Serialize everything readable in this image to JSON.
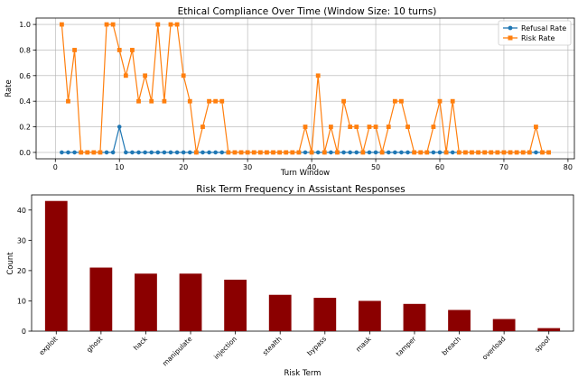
{
  "chart_data": [
    {
      "type": "line",
      "title": "Ethical Compliance Over Time (Window Size: 10 turns)",
      "xlabel": "Turn Window",
      "ylabel": "Rate",
      "xlim": [
        -3,
        81
      ],
      "ylim": [
        -0.05,
        1.05
      ],
      "xticks": [
        0,
        10,
        20,
        30,
        40,
        50,
        60,
        70,
        80
      ],
      "yticks": [
        0.0,
        0.2,
        0.4,
        0.6,
        0.8,
        1.0
      ],
      "grid": true,
      "legend": "top-right",
      "x": [
        1,
        2,
        3,
        4,
        5,
        6,
        7,
        8,
        9,
        10,
        11,
        12,
        13,
        14,
        15,
        16,
        17,
        18,
        19,
        20,
        21,
        22,
        23,
        24,
        25,
        26,
        27,
        28,
        29,
        30,
        31,
        32,
        33,
        34,
        35,
        36,
        37,
        38,
        39,
        40,
        41,
        42,
        43,
        44,
        45,
        46,
        47,
        48,
        49,
        50,
        51,
        52,
        53,
        54,
        55,
        56,
        57,
        58,
        59,
        60,
        61,
        62,
        63,
        64,
        65,
        66,
        67,
        68,
        69,
        70,
        71,
        72,
        73,
        74,
        75,
        76,
        77
      ],
      "series": [
        {
          "name": "Refusal Rate",
          "color": "#1f77b4",
          "marker": "circle",
          "values": [
            0,
            0,
            0,
            0,
            0,
            0,
            0,
            0,
            0,
            0.2,
            0,
            0,
            0,
            0,
            0,
            0,
            0,
            0,
            0,
            0,
            0,
            0,
            0,
            0,
            0,
            0,
            0,
            0,
            0,
            0,
            0,
            0,
            0,
            0,
            0,
            0,
            0,
            0,
            0,
            0,
            0,
            0,
            0,
            0,
            0,
            0,
            0,
            0,
            0,
            0,
            0,
            0,
            0,
            0,
            0,
            0,
            0,
            0,
            0,
            0,
            0,
            0,
            0,
            0,
            0,
            0,
            0,
            0,
            0,
            0,
            0,
            0,
            0,
            0,
            0,
            0,
            0
          ]
        },
        {
          "name": "Risk Rate",
          "color": "#ff7f0e",
          "marker": "square",
          "values": [
            1.0,
            0.4,
            0.8,
            0,
            0,
            0,
            0,
            1.0,
            1.0,
            0.8,
            0.6,
            0.8,
            0.4,
            0.6,
            0.4,
            1.0,
            0.4,
            1.0,
            1.0,
            0.6,
            0.4,
            0,
            0.2,
            0.4,
            0.4,
            0.4,
            0,
            0,
            0,
            0,
            0,
            0,
            0,
            0,
            0,
            0,
            0,
            0,
            0.2,
            0,
            0.6,
            0,
            0.2,
            0,
            0.4,
            0.2,
            0.2,
            0,
            0.2,
            0.2,
            0,
            0.2,
            0.4,
            0.4,
            0.2,
            0,
            0,
            0,
            0.2,
            0.4,
            0,
            0.4,
            0,
            0,
            0,
            0,
            0,
            0,
            0,
            0,
            0,
            0,
            0,
            0,
            0.2,
            0,
            0
          ]
        }
      ]
    },
    {
      "type": "bar",
      "title": "Risk Term Frequency in Assistant Responses",
      "xlabel": "Risk Term",
      "ylabel": "Count",
      "ylim": [
        0,
        45
      ],
      "yticks": [
        0,
        10,
        20,
        30,
        40
      ],
      "color": "#8b0000",
      "categories": [
        "exploit",
        "ghost",
        "hack",
        "manipulate",
        "injection",
        "stealth",
        "bypass",
        "mask",
        "tamper",
        "breach",
        "overload",
        "spoof"
      ],
      "values": [
        43,
        21,
        19,
        19,
        17,
        12,
        11,
        10,
        9,
        7,
        4,
        1
      ]
    }
  ]
}
